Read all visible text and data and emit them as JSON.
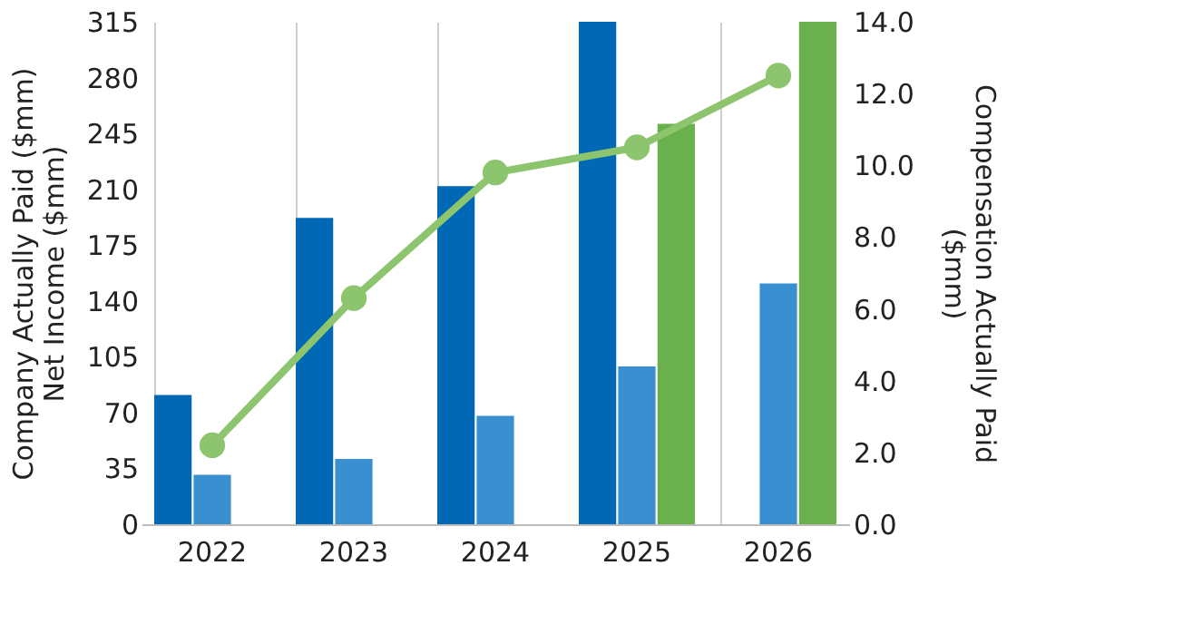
{
  "chart_data": {
    "type": "bar",
    "categories": [
      "2022",
      "2023",
      "2024",
      "2025",
      "2026"
    ],
    "ylabel": "Company Actually Paid ($mm)\nNet Income ($mm)",
    "y2label": "Compensation Actually Paid ($mm)",
    "ylim": [
      0,
      315
    ],
    "yticks": [
      0,
      35,
      70,
      105,
      140,
      175,
      210,
      245,
      280,
      315
    ],
    "y2lim": [
      0,
      14
    ],
    "y2ticks": [
      {
        "value": 0,
        "label": "0.0"
      },
      {
        "value": 2,
        "label": "2.0"
      },
      {
        "value": 4,
        "label": "4.0"
      },
      {
        "value": 6,
        "label": "6.0"
      },
      {
        "value": 8,
        "label": "8.0"
      },
      {
        "value": 10,
        "label": "10.0"
      },
      {
        "value": 12,
        "label": "12.0"
      },
      {
        "value": 14,
        "label": "14.0"
      }
    ],
    "grid": "x",
    "legend": false,
    "series": [
      {
        "color": "#0068b5",
        "values": [
          81,
          192,
          212,
          315,
          null
        ]
      },
      {
        "color": "#3a8fd0",
        "values": [
          31,
          41,
          68,
          99,
          151
        ]
      },
      {
        "color": "#6ab04c",
        "values": [
          null,
          null,
          null,
          251,
          315
        ]
      },
      {
        "type": "line",
        "axis": "y2",
        "color": "#8cc56e",
        "marker": "circle",
        "line_style": "solid",
        "values": [
          2.2,
          6.3,
          9.8,
          10.5,
          12.5
        ]
      }
    ]
  }
}
